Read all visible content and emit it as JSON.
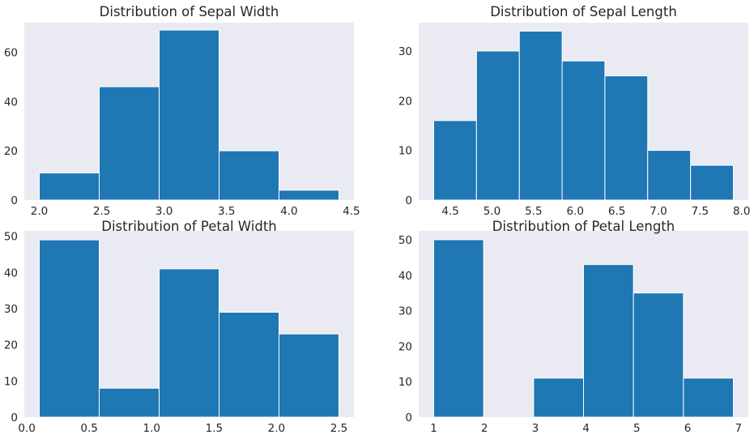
{
  "figure": {
    "background": "#ffffff",
    "axes_background": "#eaeaf2",
    "bar_color": "#1f77b4",
    "bar_edge": "#ffffff"
  },
  "chart_data": [
    {
      "type": "bar",
      "title": "Distribution of Sepal Width",
      "bin_edges": [
        2.0,
        2.48,
        2.96,
        3.44,
        3.92,
        4.4
      ],
      "values": [
        11,
        46,
        69,
        20,
        4
      ],
      "xlim": [
        1.88,
        4.52
      ],
      "ylim": [
        0,
        72
      ],
      "xticks": [
        2.0,
        2.5,
        3.0,
        3.5,
        4.0,
        4.5
      ],
      "xtick_labels": [
        "2.0",
        "2.5",
        "3.0",
        "3.5",
        "4.0",
        "4.5"
      ],
      "yticks": [
        0,
        20,
        40,
        60
      ],
      "ytick_labels": [
        "0",
        "20",
        "40",
        "60"
      ],
      "grid": false
    },
    {
      "type": "bar",
      "title": "Distribution of Sepal Length",
      "bin_edges": [
        4.3,
        4.814,
        5.329,
        5.843,
        6.357,
        6.871,
        7.386,
        7.9
      ],
      "values": [
        16,
        30,
        34,
        28,
        25,
        10,
        7
      ],
      "xlim": [
        4.12,
        8.08
      ],
      "ylim": [
        0,
        35.7
      ],
      "xticks": [
        4.5,
        5.0,
        5.5,
        6.0,
        6.5,
        7.0,
        7.5,
        8.0
      ],
      "xtick_labels": [
        "4.5",
        "5.0",
        "5.5",
        "6.0",
        "6.5",
        "7.0",
        "7.5",
        "8.0"
      ],
      "yticks": [
        0,
        10,
        20,
        30
      ],
      "ytick_labels": [
        "0",
        "10",
        "20",
        "30"
      ],
      "grid": false
    },
    {
      "type": "bar",
      "title": "Distribution of Petal Width",
      "bin_edges": [
        0.1,
        0.58,
        1.06,
        1.54,
        2.02,
        2.5
      ],
      "values": [
        49,
        8,
        41,
        29,
        23
      ],
      "xlim": [
        -0.02,
        2.62
      ],
      "ylim": [
        0,
        51.5
      ],
      "xticks": [
        0.0,
        0.5,
        1.0,
        1.5,
        2.0,
        2.5
      ],
      "xtick_labels": [
        "0.0",
        "0.5",
        "1.0",
        "1.5",
        "2.0",
        "2.5"
      ],
      "yticks": [
        0,
        10,
        20,
        30,
        40,
        50
      ],
      "ytick_labels": [
        "0",
        "10",
        "20",
        "30",
        "40",
        "50"
      ],
      "grid": false
    },
    {
      "type": "bar",
      "title": "Distribution of Petal Length",
      "bin_edges": [
        1.0,
        1.983,
        2.967,
        3.95,
        4.933,
        5.917,
        6.9
      ],
      "values": [
        50,
        0,
        11,
        43,
        35,
        11
      ],
      "xlim": [
        0.705,
        7.195
      ],
      "ylim": [
        0,
        52.5
      ],
      "xticks": [
        1,
        2,
        3,
        4,
        5,
        6,
        7
      ],
      "xtick_labels": [
        "1",
        "2",
        "3",
        "4",
        "5",
        "6",
        "7"
      ],
      "yticks": [
        0,
        10,
        20,
        30,
        40,
        50
      ],
      "ytick_labels": [
        "0",
        "10",
        "20",
        "30",
        "40",
        "50"
      ],
      "grid": false
    }
  ]
}
